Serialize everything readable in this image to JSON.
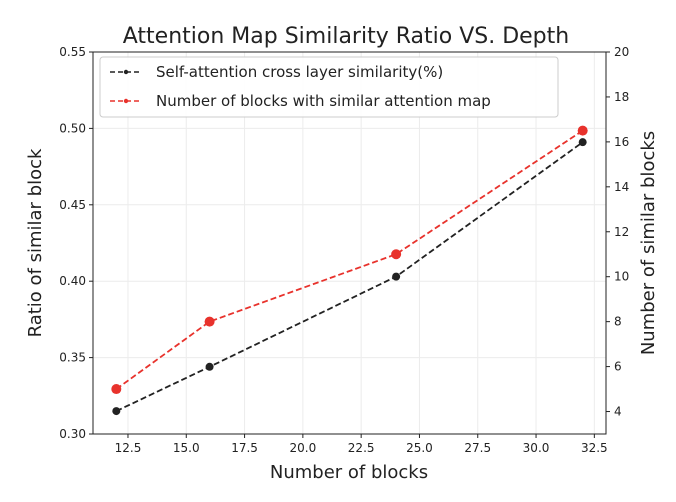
{
  "chart_data": {
    "type": "line",
    "title": "Attention Map Similarity Ratio VS. Depth",
    "xlabel": "Number of blocks",
    "ylabel_left": "Ratio of similar block",
    "ylabel_right": "Number of similar blocks",
    "xlim": [
      11.0,
      33.0
    ],
    "ylim_left": [
      0.3,
      0.55
    ],
    "ylim_right": [
      3.0,
      20.0
    ],
    "xticks": [
      12.5,
      15.0,
      17.5,
      20.0,
      22.5,
      25.0,
      27.5,
      30.0,
      32.5
    ],
    "xtick_labels": [
      "12.5",
      "15.0",
      "17.5",
      "20.0",
      "22.5",
      "25.0",
      "27.5",
      "30.0",
      "32.5"
    ],
    "yticks_left": [
      0.3,
      0.35,
      0.4,
      0.45,
      0.5,
      0.55
    ],
    "ytick_labels_left": [
      "0.30",
      "0.35",
      "0.40",
      "0.45",
      "0.50",
      "0.55"
    ],
    "yticks_right": [
      4,
      6,
      8,
      10,
      12,
      14,
      16,
      18,
      20
    ],
    "ytick_labels_right": [
      "4",
      "6",
      "8",
      "10",
      "12",
      "14",
      "16",
      "18",
      "20"
    ],
    "grid": true,
    "legend_position": "top-left",
    "series": [
      {
        "name": "Self-attention cross layer similarity(%)",
        "axis": "left",
        "color": "#222222",
        "x": [
          12,
          16,
          24,
          32
        ],
        "values": [
          0.315,
          0.344,
          0.403,
          0.491
        ]
      },
      {
        "name": "Number of blocks with similar attention map",
        "axis": "right",
        "color": "#e8322c",
        "x": [
          12,
          16,
          24,
          32
        ],
        "values": [
          5,
          8,
          11,
          16.5
        ]
      }
    ]
  }
}
